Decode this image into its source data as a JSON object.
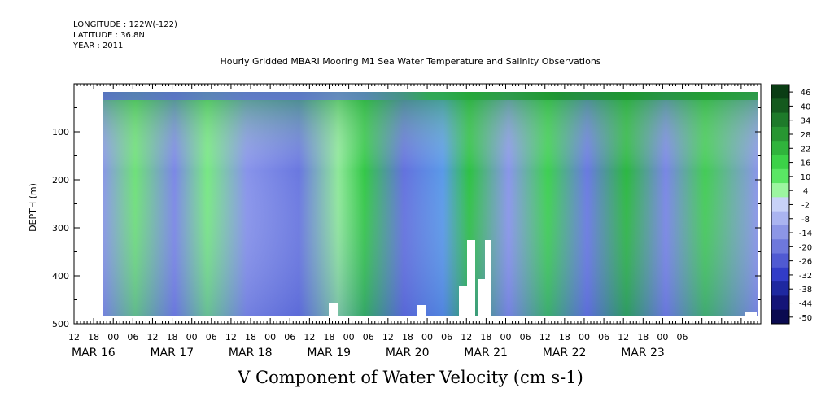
{
  "header": {
    "longitude": "LONGITUDE : 122W(-122)",
    "latitude": "LATITUDE : 36.8N",
    "year": "YEAR : 2011"
  },
  "chart_data": {
    "type": "heatmap",
    "title": "Hourly Gridded MBARI Mooring M1 Sea Water Temperature and Salinity Observations",
    "xlabel": "V Component of Water Velocity (cm s-1)",
    "ylabel": "DEPTH (m)",
    "ylim": [
      500,
      0
    ],
    "y_ticks": [
      100,
      200,
      300,
      400,
      500
    ],
    "x_range_hours": [
      -12,
      198
    ],
    "x_hour_ticks": [
      "12",
      "18",
      "00",
      "06",
      "12",
      "18",
      "00",
      "06",
      "12",
      "18",
      "00",
      "06",
      "12",
      "18",
      "00",
      "06",
      "12",
      "18",
      "00",
      "06",
      "12",
      "18",
      "00",
      "06",
      "12",
      "18",
      "00",
      "06",
      "12",
      "18",
      "00",
      "06"
    ],
    "x_date_labels": [
      "MAR 16",
      "MAR 17",
      "MAR 18",
      "MAR 19",
      "MAR 20",
      "MAR 21",
      "MAR 22",
      "MAR 23"
    ],
    "colorbar": {
      "labels": [
        "46",
        "40",
        "34",
        "28",
        "22",
        "16",
        "10",
        "4",
        "-2",
        "-8",
        "-14",
        "-20",
        "-26",
        "-32",
        "-38",
        "-44",
        "-50"
      ],
      "colors": [
        "#0a3d14",
        "#145a1e",
        "#1e7a2a",
        "#289632",
        "#30b43c",
        "#3cd248",
        "#5ae664",
        "#9cf5a0",
        "#c8d2f8",
        "#aab4f0",
        "#8c96e6",
        "#6e78dc",
        "#505ad2",
        "#323cc8",
        "#1e28a0",
        "#141478",
        "#0a0a50"
      ]
    }
  }
}
